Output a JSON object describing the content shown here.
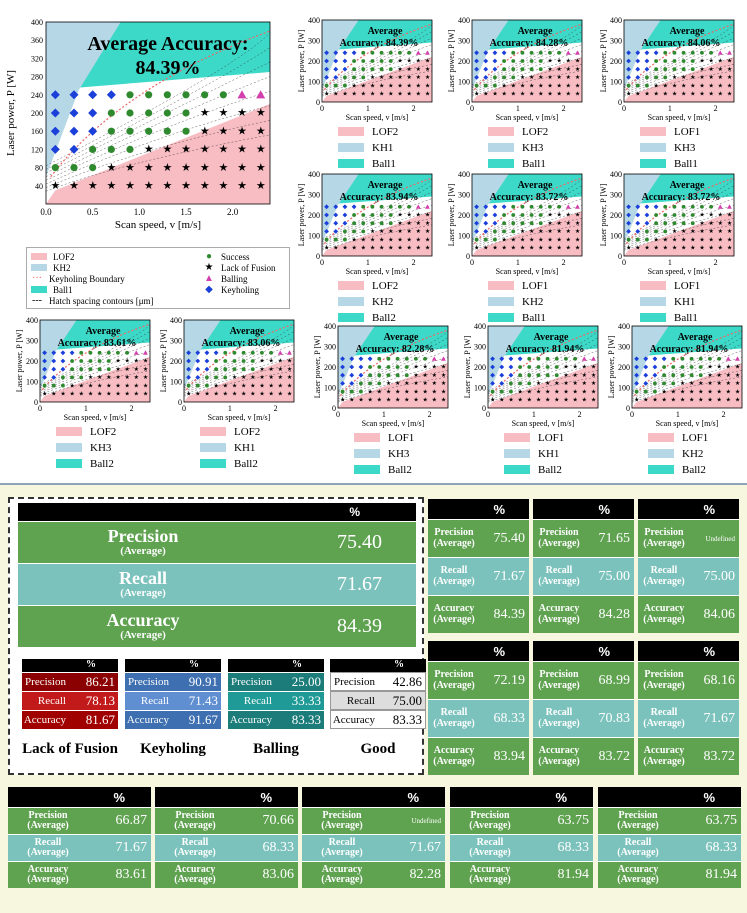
{
  "colors": {
    "lof": "#f8bcc3",
    "kh": "#b6d8e6",
    "ball": "#3dd9c8",
    "green": "#5fa250",
    "teal_row": "#7cc2bc"
  },
  "big_plot": {
    "accuracy_title": "Average Accuracy:",
    "accuracy_value": "84.39%",
    "xlabel": "Scan speed, v [m/s]",
    "ylabel": "Laser power, P [W]",
    "xticks": [
      "0.0",
      "0.5",
      "1.0",
      "1.5",
      "2.0"
    ],
    "yticks": [
      "40",
      "80",
      "120",
      "160",
      "200",
      "240",
      "280",
      "320",
      "360",
      "400"
    ],
    "legend": {
      "lof": "LOF2",
      "kh": "KH2",
      "kb": "Keyholing Boundary",
      "ball": "Ball1",
      "hatch": "Hatch spacing contours [μm]",
      "success": "Success",
      "lack": "Lack of Fusion",
      "balling": "Balling",
      "keyholing": "Keyholing"
    }
  },
  "small_plots": [
    {
      "acc_line1": "Average",
      "acc_line2": "Accuracy: 84.39%",
      "legend": [
        "LOF2",
        "KH1",
        "Ball1"
      ]
    },
    {
      "acc_line1": "Average",
      "acc_line2": "Accuracy: 84.28%",
      "legend": [
        "LOF2",
        "KH3",
        "Ball1"
      ]
    },
    {
      "acc_line1": "Average",
      "acc_line2": "Accuracy: 84.06%",
      "legend": [
        "LOF1",
        "KH3",
        "Ball1"
      ]
    },
    {
      "acc_line1": "Average",
      "acc_line2": "Accuracy: 83.94%",
      "legend": [
        "LOF2",
        "KH2",
        "Ball2"
      ]
    },
    {
      "acc_line1": "Average",
      "acc_line2": "Accuracy: 83.72%",
      "legend": [
        "LOF1",
        "KH2",
        "Ball1"
      ]
    },
    {
      "acc_line1": "Average",
      "acc_line2": "Accuracy: 83.72%",
      "legend": [
        "LOF1",
        "KH1",
        "Ball1"
      ]
    },
    {
      "acc_line1": "Average",
      "acc_line2": "Accuracy: 83.61%",
      "legend": [
        "LOF2",
        "KH3",
        "Ball2"
      ]
    },
    {
      "acc_line1": "Average",
      "acc_line2": "Accuracy: 83.06%",
      "legend": [
        "LOF2",
        "KH1",
        "Ball2"
      ]
    },
    {
      "acc_line1": "Average",
      "acc_line2": "Accuracy: 82.28%",
      "legend": [
        "LOF1",
        "KH3",
        "Ball2"
      ]
    },
    {
      "acc_line1": "Average",
      "acc_line2": "Accuracy: 81.94%",
      "legend": [
        "LOF1",
        "KH1",
        "Ball2"
      ]
    },
    {
      "acc_line1": "Average",
      "acc_line2": "Accuracy: 81.94%",
      "legend": [
        "LOF1",
        "KH2",
        "Ball2"
      ]
    }
  ],
  "small_axes": {
    "xlabel": "Scan speed, v [m/s]",
    "ylabel": "Laser power, P [W]",
    "xticks": [
      "0",
      "1",
      "2"
    ],
    "yticks": [
      "0",
      "100",
      "200",
      "300",
      "400"
    ]
  },
  "main_table": {
    "header": "%",
    "rows": [
      {
        "label": "Precision",
        "sub": "(Average)",
        "value": "75.40"
      },
      {
        "label": "Recall",
        "sub": "(Average)",
        "value": "71.67"
      },
      {
        "label": "Accuracy",
        "sub": "(Average)",
        "value": "84.39"
      }
    ]
  },
  "class_tables": [
    {
      "title": "Lack of Fusion",
      "header": "%",
      "rows": [
        {
          "label": "Precision",
          "value": "86.21"
        },
        {
          "label": "Recall",
          "value": "78.13"
        },
        {
          "label": "Accuracy",
          "value": "81.67"
        }
      ]
    },
    {
      "title": "Keyholing",
      "header": "%",
      "rows": [
        {
          "label": "Precision",
          "value": "90.91"
        },
        {
          "label": "Recall",
          "value": "71.43"
        },
        {
          "label": "Accuracy",
          "value": "91.67"
        }
      ]
    },
    {
      "title": "Balling",
      "header": "%",
      "rows": [
        {
          "label": "Precision",
          "value": "25.00"
        },
        {
          "label": "Recall",
          "value": "33.33"
        },
        {
          "label": "Accuracy",
          "value": "83.33"
        }
      ]
    },
    {
      "title": "Good",
      "header": "%",
      "rows": [
        {
          "label": "Precision",
          "value": "42.86"
        },
        {
          "label": "Recall",
          "value": "75.00"
        },
        {
          "label": "Accuracy",
          "value": "83.33"
        }
      ]
    }
  ],
  "metric_tables": [
    {
      "header": "%",
      "precision": "75.40",
      "recall": "71.67",
      "accuracy": "84.39"
    },
    {
      "header": "%",
      "precision": "71.65",
      "recall": "75.00",
      "accuracy": "84.28"
    },
    {
      "header": "%",
      "precision": "Undefined",
      "recall": "75.00",
      "accuracy": "84.06"
    },
    {
      "header": "%",
      "precision": "72.19",
      "recall": "68.33",
      "accuracy": "83.94"
    },
    {
      "header": "%",
      "precision": "68.99",
      "recall": "70.83",
      "accuracy": "83.72"
    },
    {
      "header": "%",
      "precision": "68.16",
      "recall": "71.67",
      "accuracy": "83.72"
    },
    {
      "header": "%",
      "precision": "66.87",
      "recall": "71.67",
      "accuracy": "83.61"
    },
    {
      "header": "%",
      "precision": "70.66",
      "recall": "68.33",
      "accuracy": "83.06"
    },
    {
      "header": "%",
      "precision": "Undefined",
      "recall": "71.67",
      "accuracy": "82.28"
    },
    {
      "header": "%",
      "precision": "63.75",
      "recall": "68.33",
      "accuracy": "81.94"
    },
    {
      "header": "%",
      "precision": "63.75",
      "recall": "68.33",
      "accuracy": "81.94"
    }
  ],
  "metric_labels": {
    "precision": "Precision",
    "recall": "Recall",
    "accuracy": "Accuracy",
    "average": "(Average)"
  },
  "chart_data": [
    {
      "type": "scatter",
      "title": "Average Accuracy: 84.39%",
      "xlabel": "Scan speed, v [m/s]",
      "ylabel": "Laser power, P [W]",
      "xlim": [
        0,
        2.4
      ],
      "ylim": [
        0,
        400
      ],
      "regions": [
        "LOF2",
        "KH2",
        "Ball1"
      ],
      "series": [
        {
          "name": "Success"
        },
        {
          "name": "Lack of Fusion"
        },
        {
          "name": "Balling"
        },
        {
          "name": "Keyholing"
        }
      ]
    }
  ]
}
